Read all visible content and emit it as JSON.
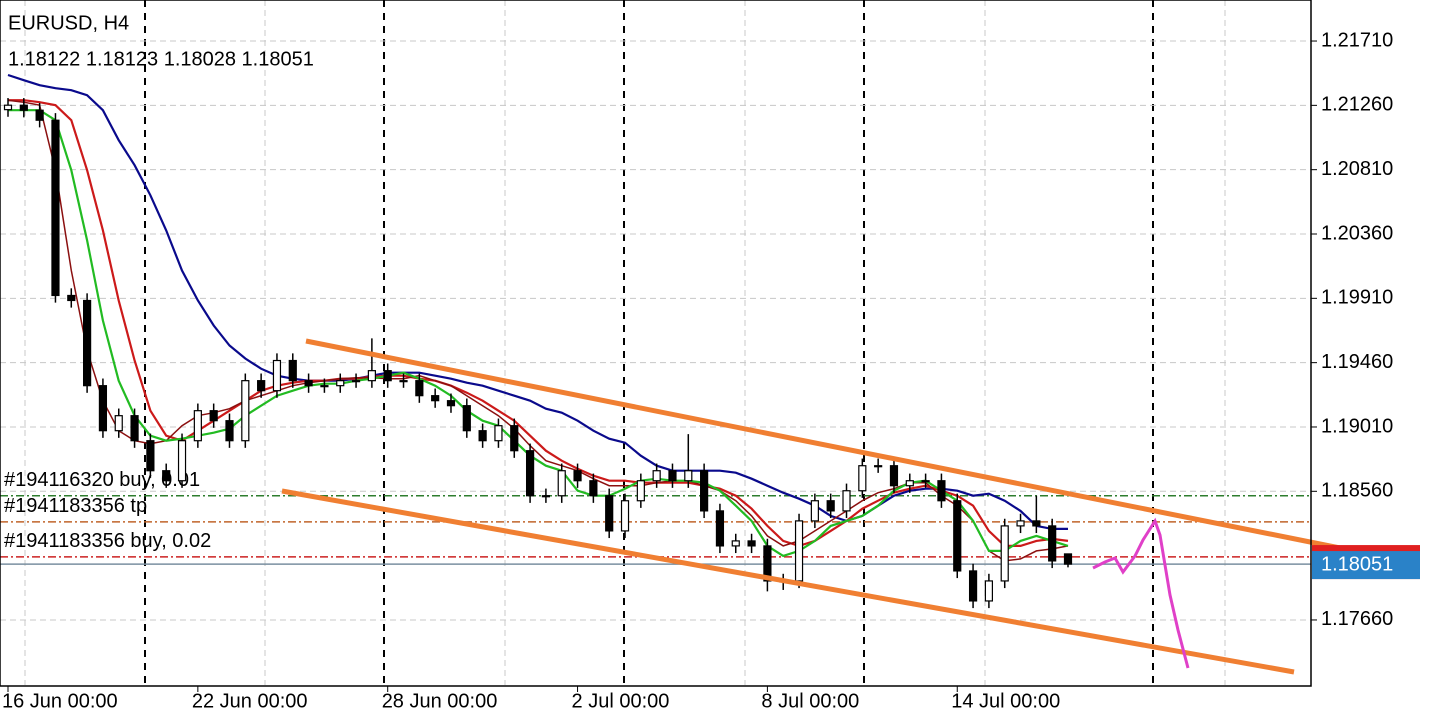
{
  "chart_data": {
    "type": "candlestick",
    "title": "EURUSD, H4",
    "ohlc_label": "1.18122 1.18123 1.18028 1.18051",
    "categories": [
      "16 Jun 00:00",
      null,
      null,
      null,
      null,
      null,
      null,
      null,
      null,
      null,
      null,
      null,
      "22 Jun 00:00",
      null,
      null,
      null,
      null,
      null,
      null,
      null,
      null,
      null,
      null,
      null,
      "28 Jun 00:00",
      null,
      null,
      null,
      null,
      null,
      null,
      null,
      null,
      null,
      null,
      null,
      "2 Jul 00:00",
      null,
      null,
      null,
      null,
      null,
      null,
      null,
      null,
      null,
      null,
      null,
      "8 Jul 00:00",
      null,
      null,
      null,
      null,
      null,
      null,
      null,
      null,
      null,
      null,
      null,
      "14 Jul 00:00",
      null,
      null,
      null,
      null,
      null,
      null,
      null
    ],
    "open": [
      1.2123,
      1.21261,
      1.21226,
      1.21156,
      1.1993,
      1.19895,
      1.19299,
      1.18984,
      1.19089,
      1.18914,
      1.18704,
      1.18634,
      1.18914,
      1.19124,
      1.19054,
      1.18914,
      1.19334,
      1.19264,
      1.19475,
      1.19334,
      1.19299,
      1.19299,
      1.19334,
      1.19334,
      1.19404,
      1.19334,
      1.19334,
      1.19229,
      1.19194,
      1.19159,
      1.18984,
      1.18914,
      1.19019,
      1.18844,
      1.18529,
      1.18529,
      1.18704,
      1.18634,
      1.18529,
      1.18283,
      1.18494,
      1.18634,
      1.18704,
      1.18634,
      1.18704,
      1.18423,
      1.18178,
      1.18213,
      1.18178,
      1.17933,
      1.17933,
      1.18353,
      1.18494,
      1.18423,
      1.18564,
      1.18739,
      1.18739,
      1.18599,
      1.18634,
      1.18634,
      1.18494,
      1.18003,
      1.17793,
      1.17933,
      1.18318,
      1.18353,
      1.18318,
      1.18122
    ],
    "high": [
      1.21311,
      1.21311,
      1.21276,
      1.21206,
      1.1998,
      1.19945,
      1.19349,
      1.19139,
      1.19139,
      1.18964,
      1.18754,
      1.18964,
      1.19174,
      1.19174,
      1.19104,
      1.19384,
      1.19384,
      1.19525,
      1.19525,
      1.19384,
      1.19349,
      1.19384,
      1.19384,
      1.1963,
      1.19454,
      1.19384,
      1.19384,
      1.19279,
      1.19244,
      1.19209,
      1.19034,
      1.19069,
      1.19069,
      1.18894,
      1.18579,
      1.18754,
      1.18754,
      1.18684,
      1.18579,
      1.18544,
      1.18684,
      1.18754,
      1.18754,
      1.1896,
      1.18754,
      1.18473,
      1.18263,
      1.18263,
      1.18228,
      1.17983,
      1.18403,
      1.18544,
      1.18544,
      1.18614,
      1.18789,
      1.18789,
      1.18789,
      1.18684,
      1.18684,
      1.18684,
      1.18544,
      1.18053,
      1.17983,
      1.18368,
      1.18403,
      1.18529,
      1.18368,
      1.18123
    ],
    "low": [
      1.2118,
      1.21176,
      1.21106,
      1.1988,
      1.19845,
      1.19249,
      1.18934,
      1.18934,
      1.18864,
      1.18654,
      1.18584,
      1.18584,
      1.18864,
      1.19004,
      1.18864,
      1.18864,
      1.19214,
      1.19214,
      1.19284,
      1.19249,
      1.19249,
      1.19249,
      1.19284,
      1.19284,
      1.19284,
      1.19284,
      1.19179,
      1.19144,
      1.19109,
      1.18934,
      1.18864,
      1.18864,
      1.18794,
      1.18479,
      1.18479,
      1.18479,
      1.18584,
      1.18479,
      1.18233,
      1.18233,
      1.18444,
      1.18584,
      1.18584,
      1.18584,
      1.18373,
      1.18128,
      1.18128,
      1.18128,
      1.1786,
      1.1787,
      1.17883,
      1.18303,
      1.18373,
      1.18373,
      1.18514,
      1.18689,
      1.18549,
      1.18549,
      1.18584,
      1.18444,
      1.17953,
      1.17743,
      1.17743,
      1.17883,
      1.18268,
      1.18268,
      1.18023,
      1.18028
    ],
    "close": [
      1.21261,
      1.21226,
      1.21156,
      1.1993,
      1.19895,
      1.19299,
      1.18984,
      1.19089,
      1.18914,
      1.18704,
      1.18634,
      1.18914,
      1.19124,
      1.19054,
      1.18914,
      1.19334,
      1.19264,
      1.19475,
      1.19334,
      1.19299,
      1.19299,
      1.19334,
      1.19334,
      1.19404,
      1.19334,
      1.19334,
      1.19229,
      1.19194,
      1.19159,
      1.18984,
      1.18914,
      1.19019,
      1.18844,
      1.18529,
      1.18529,
      1.18704,
      1.18634,
      1.18529,
      1.18283,
      1.18494,
      1.18634,
      1.18704,
      1.18634,
      1.18704,
      1.18423,
      1.18178,
      1.18213,
      1.18178,
      1.17933,
      1.17933,
      1.18353,
      1.18494,
      1.18423,
      1.18564,
      1.18739,
      1.18739,
      1.18599,
      1.18634,
      1.18634,
      1.18494,
      1.18003,
      1.17793,
      1.17933,
      1.18318,
      1.18353,
      1.18318,
      1.18073,
      1.18051
    ],
    "color": "#000000",
    "series": [
      {
        "color": "#0a0a8c",
        "values": [
          1.21472,
          1.21436,
          1.21401,
          1.2138,
          1.21366,
          1.21331,
          1.21226,
          1.21016,
          1.20841,
          1.20631,
          1.20385,
          1.20105,
          1.19895,
          1.1972,
          1.1958,
          1.19489,
          1.19418,
          1.19369,
          1.19348,
          1.19334,
          1.19334,
          1.19334,
          1.19348,
          1.19369,
          1.1939,
          1.1939,
          1.1939,
          1.19369,
          1.19348,
          1.1932,
          1.19299,
          1.19264,
          1.19229,
          1.19194,
          1.19138,
          1.1911,
          1.19054,
          1.18984,
          1.18928,
          1.189,
          1.18809,
          1.18739,
          1.18704,
          1.18704,
          1.18704,
          1.18704,
          1.1869,
          1.18648,
          1.18599,
          1.1855,
          1.18508,
          1.18459,
          1.18388,
          1.18353,
          1.18388,
          1.18459,
          1.18529,
          1.18564,
          1.18578,
          1.18578,
          1.18564,
          1.18529,
          1.18543,
          1.18494,
          1.18423,
          1.18318,
          1.18297,
          1.18297
        ]
      },
      {
        "color": "#cc1a1a",
        "values": [
          1.21296,
          1.21296,
          1.21282,
          1.21261,
          1.21156,
          1.20806,
          1.20385,
          1.19895,
          1.19475,
          1.19124,
          1.18949,
          1.18914,
          1.18984,
          1.19054,
          1.19124,
          1.19194,
          1.19264,
          1.19299,
          1.1932,
          1.19334,
          1.19334,
          1.19348,
          1.19348,
          1.19362,
          1.19369,
          1.19369,
          1.19348,
          1.19334,
          1.19299,
          1.1925,
          1.19194,
          1.19124,
          1.19054,
          1.18949,
          1.18844,
          1.18774,
          1.18718,
          1.18669,
          1.18634,
          1.18634,
          1.1862,
          1.1862,
          1.1862,
          1.1862,
          1.18599,
          1.18578,
          1.18529,
          1.18438,
          1.18318,
          1.18213,
          1.18178,
          1.18213,
          1.18283,
          1.18353,
          1.18438,
          1.18494,
          1.1855,
          1.18578,
          1.18599,
          1.18564,
          1.18529,
          1.18459,
          1.18283,
          1.18178,
          1.18178,
          1.18213,
          1.18227,
          1.18213
        ]
      },
      {
        "color": "#8b1010",
        "values": [
          1.21296,
          1.21282,
          1.21261,
          1.20806,
          1.20105,
          1.19545,
          1.19194,
          1.18984,
          1.18914,
          1.18893,
          1.18914,
          1.19019,
          1.19089,
          1.1911,
          1.19138,
          1.19194,
          1.19229,
          1.19264,
          1.19299,
          1.1932,
          1.19334,
          1.19348,
          1.19355,
          1.19355,
          1.19348,
          1.19348,
          1.19369,
          1.19334,
          1.19299,
          1.19229,
          1.19159,
          1.19089,
          1.18998,
          1.18879,
          1.18774,
          1.18739,
          1.18704,
          1.18648,
          1.18599,
          1.18599,
          1.18599,
          1.1862,
          1.18634,
          1.18634,
          1.18599,
          1.18564,
          1.18494,
          1.18388,
          1.18248,
          1.18178,
          1.18213,
          1.18283,
          1.18353,
          1.18423,
          1.18494,
          1.1855,
          1.18578,
          1.1862,
          1.1862,
          1.18529,
          1.18459,
          1.18353,
          1.18143,
          1.18073,
          1.18087,
          1.18143,
          1.18157,
          1.18178
        ]
      },
      {
        "color": "#22bb22",
        "values": [
          1.21226,
          1.21226,
          1.21226,
          1.21156,
          1.20806,
          1.20315,
          1.19755,
          1.19334,
          1.19089,
          1.18949,
          1.18914,
          1.18928,
          1.18949,
          1.1897,
          1.18998,
          1.19089,
          1.19159,
          1.19229,
          1.19264,
          1.19299,
          1.19313,
          1.19313,
          1.19334,
          1.19348,
          1.19369,
          1.1939,
          1.19348,
          1.19299,
          1.19229,
          1.19124,
          1.19054,
          1.19019,
          1.18914,
          1.18809,
          1.18739,
          1.18704,
          1.18564,
          1.18529,
          1.18529,
          1.18578,
          1.18634,
          1.18648,
          1.18634,
          1.18634,
          1.1862,
          1.18564,
          1.18459,
          1.18353,
          1.18178,
          1.18108,
          1.18143,
          1.18213,
          1.18318,
          1.18353,
          1.18388,
          1.18459,
          1.18564,
          1.1862,
          1.18634,
          1.18564,
          1.18494,
          1.18353,
          1.18143,
          1.18143,
          1.18213,
          1.18248,
          1.18213,
          1.18178
        ]
      }
    ],
    "orders": [
      {
        "label": "#194116320 buy, 0.01",
        "value": 1.18529,
        "color": "#2e7d2e"
      },
      {
        "label": "#1941183356 tp",
        "value": 1.18346,
        "color": "#c0642a"
      },
      {
        "label": "#1941183356 buy, 0.02",
        "value": 1.18101,
        "color": "#cc2222"
      }
    ],
    "current_price": 1.18051,
    "ylim": [
      1.17198,
      1.21997
    ],
    "yticks": [
      {
        "value": 1.2171,
        "label": "1.21710"
      },
      {
        "value": 1.2126,
        "label": "1.21260"
      },
      {
        "value": 1.2081,
        "label": "1.20810"
      },
      {
        "value": 1.2036,
        "label": "1.20360"
      },
      {
        "value": 1.1991,
        "label": "1.19910"
      },
      {
        "value": 1.1946,
        "label": "1.19460"
      },
      {
        "value": 1.1901,
        "label": "1.19010"
      },
      {
        "value": 1.1856,
        "label": "1.18560"
      },
      {
        "value": 1.1766,
        "label": "1.17660"
      }
    ],
    "grid": true
  }
}
